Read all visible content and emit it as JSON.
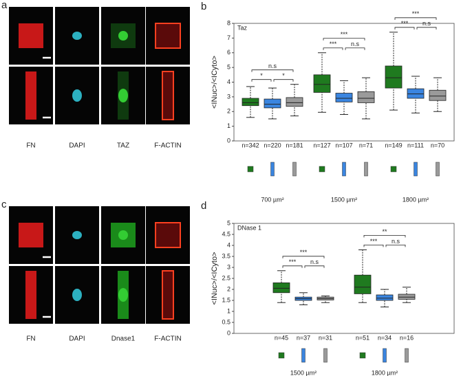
{
  "panels": [
    {
      "letter": "a",
      "channels": [
        "FN",
        "DAPI",
        "TAZ",
        "F-ACTIN"
      ]
    },
    {
      "letter": "c",
      "channels": [
        "FN",
        "DAPI",
        "Dnase1",
        "F-ACTIN"
      ]
    }
  ],
  "chart_data": [
    {
      "type": "box",
      "letter": "b",
      "annotation": "Taz",
      "ylabel": "<INuc>/<ICyto>",
      "ylim": [
        0,
        8
      ],
      "yticks": [
        0,
        1,
        2,
        3,
        4,
        5,
        6,
        7,
        8
      ],
      "groups": [
        {
          "name": "700 µm²",
          "significance": {
            "outer": "n.s",
            "left": "*",
            "right": "*"
          },
          "boxes": [
            {
              "n": "n=342",
              "color": "#1f7a1f",
              "min": 1.6,
              "q1": 2.4,
              "median": 2.6,
              "q3": 2.9,
              "max": 3.7
            },
            {
              "n": "n=220",
              "color": "#3a85e0",
              "min": 1.5,
              "q1": 2.25,
              "median": 2.5,
              "q3": 2.85,
              "max": 3.6
            },
            {
              "n": "n=181",
              "color": "#9a9a9a",
              "min": 1.7,
              "q1": 2.35,
              "median": 2.6,
              "q3": 2.95,
              "max": 3.85
            }
          ]
        },
        {
          "name": "1500 µm²",
          "significance": {
            "outer": "***",
            "left": "***",
            "right": "n.s"
          },
          "boxes": [
            {
              "n": "n=127",
              "color": "#1f7a1f",
              "min": 1.95,
              "q1": 3.3,
              "median": 3.85,
              "q3": 4.5,
              "max": 6.0
            },
            {
              "n": "n=107",
              "color": "#3a85e0",
              "min": 1.8,
              "q1": 2.65,
              "median": 2.9,
              "q3": 3.25,
              "max": 4.1
            },
            {
              "n": "n=71",
              "color": "#9a9a9a",
              "min": 1.5,
              "q1": 2.6,
              "median": 2.9,
              "q3": 3.35,
              "max": 4.3
            }
          ]
        },
        {
          "name": "1800 µm²",
          "significance": {
            "outer": "***",
            "left": "***",
            "right": "n.s"
          },
          "boxes": [
            {
              "n": "n=149",
              "color": "#1f7a1f",
              "min": 2.1,
              "q1": 3.6,
              "median": 4.3,
              "q3": 5.1,
              "max": 7.4
            },
            {
              "n": "n=111",
              "color": "#3a85e0",
              "min": 1.9,
              "q1": 2.9,
              "median": 3.2,
              "q3": 3.55,
              "max": 4.4
            },
            {
              "n": "n=70",
              "color": "#9a9a9a",
              "min": 2.0,
              "q1": 2.75,
              "median": 3.05,
              "q3": 3.45,
              "max": 4.3
            }
          ]
        }
      ]
    },
    {
      "type": "box",
      "letter": "d",
      "annotation": "DNase 1",
      "ylabel": "<INuc>/<ICyto>",
      "ylim": [
        0,
        5
      ],
      "yticks": [
        0,
        0.5,
        1,
        1.5,
        2,
        2.5,
        3,
        3.5,
        4,
        4.5,
        5
      ],
      "groups": [
        {
          "name": "1500 µm²",
          "significance": {
            "outer": "***",
            "left": "***",
            "right": "n.s"
          },
          "boxes": [
            {
              "n": "n=45",
              "color": "#1f7a1f",
              "min": 1.4,
              "q1": 1.85,
              "median": 2.05,
              "q3": 2.3,
              "max": 2.85
            },
            {
              "n": "n=37",
              "color": "#3a85e0",
              "min": 1.3,
              "q1": 1.5,
              "median": 1.58,
              "q3": 1.65,
              "max": 1.85
            },
            {
              "n": "n=31",
              "color": "#9a9a9a",
              "min": 1.4,
              "q1": 1.52,
              "median": 1.58,
              "q3": 1.65,
              "max": 1.7
            }
          ]
        },
        {
          "name": "1800 µm²",
          "significance": {
            "outer": "**",
            "left": "***",
            "right": "n.s"
          },
          "boxes": [
            {
              "n": "n=51",
              "color": "#1f7a1f",
              "min": 1.4,
              "q1": 1.8,
              "median": 2.1,
              "q3": 2.65,
              "max": 3.8
            },
            {
              "n": "n=34",
              "color": "#3a85e0",
              "min": 1.2,
              "q1": 1.5,
              "median": 1.6,
              "q3": 1.75,
              "max": 2.0
            },
            {
              "n": "n=16",
              "color": "#9a9a9a",
              "min": 1.4,
              "q1": 1.55,
              "median": 1.65,
              "q3": 1.78,
              "max": 2.1
            }
          ]
        }
      ]
    }
  ]
}
